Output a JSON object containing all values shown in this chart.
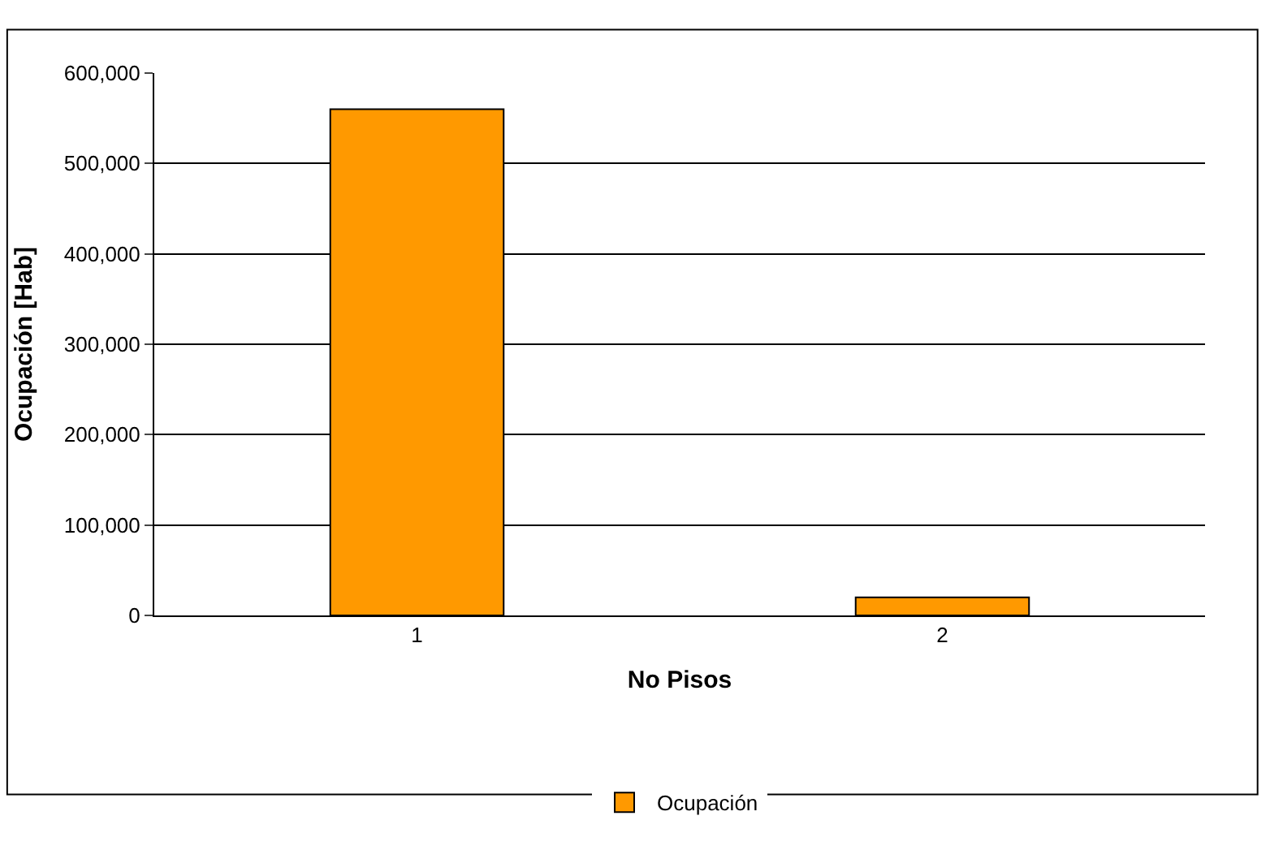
{
  "chart_data": {
    "type": "bar",
    "xlabel": "No Pisos",
    "ylabel": "Ocupación [Hab]",
    "categories": [
      "1",
      "2"
    ],
    "series": [
      {
        "name": "Ocupación",
        "color": "#ff9900",
        "values": [
          560000,
          20000
        ]
      }
    ],
    "ylim": [
      0,
      600000
    ],
    "yticks": [
      {
        "value": 0,
        "label": "0"
      },
      {
        "value": 100000,
        "label": "100,000"
      },
      {
        "value": 200000,
        "label": "200,000"
      },
      {
        "value": 300000,
        "label": "300,000"
      },
      {
        "value": 400000,
        "label": "400,000"
      },
      {
        "value": 500000,
        "label": "500,000"
      },
      {
        "value": 600000,
        "label": "600,000"
      }
    ],
    "grid": "y",
    "legend": "bottom"
  }
}
